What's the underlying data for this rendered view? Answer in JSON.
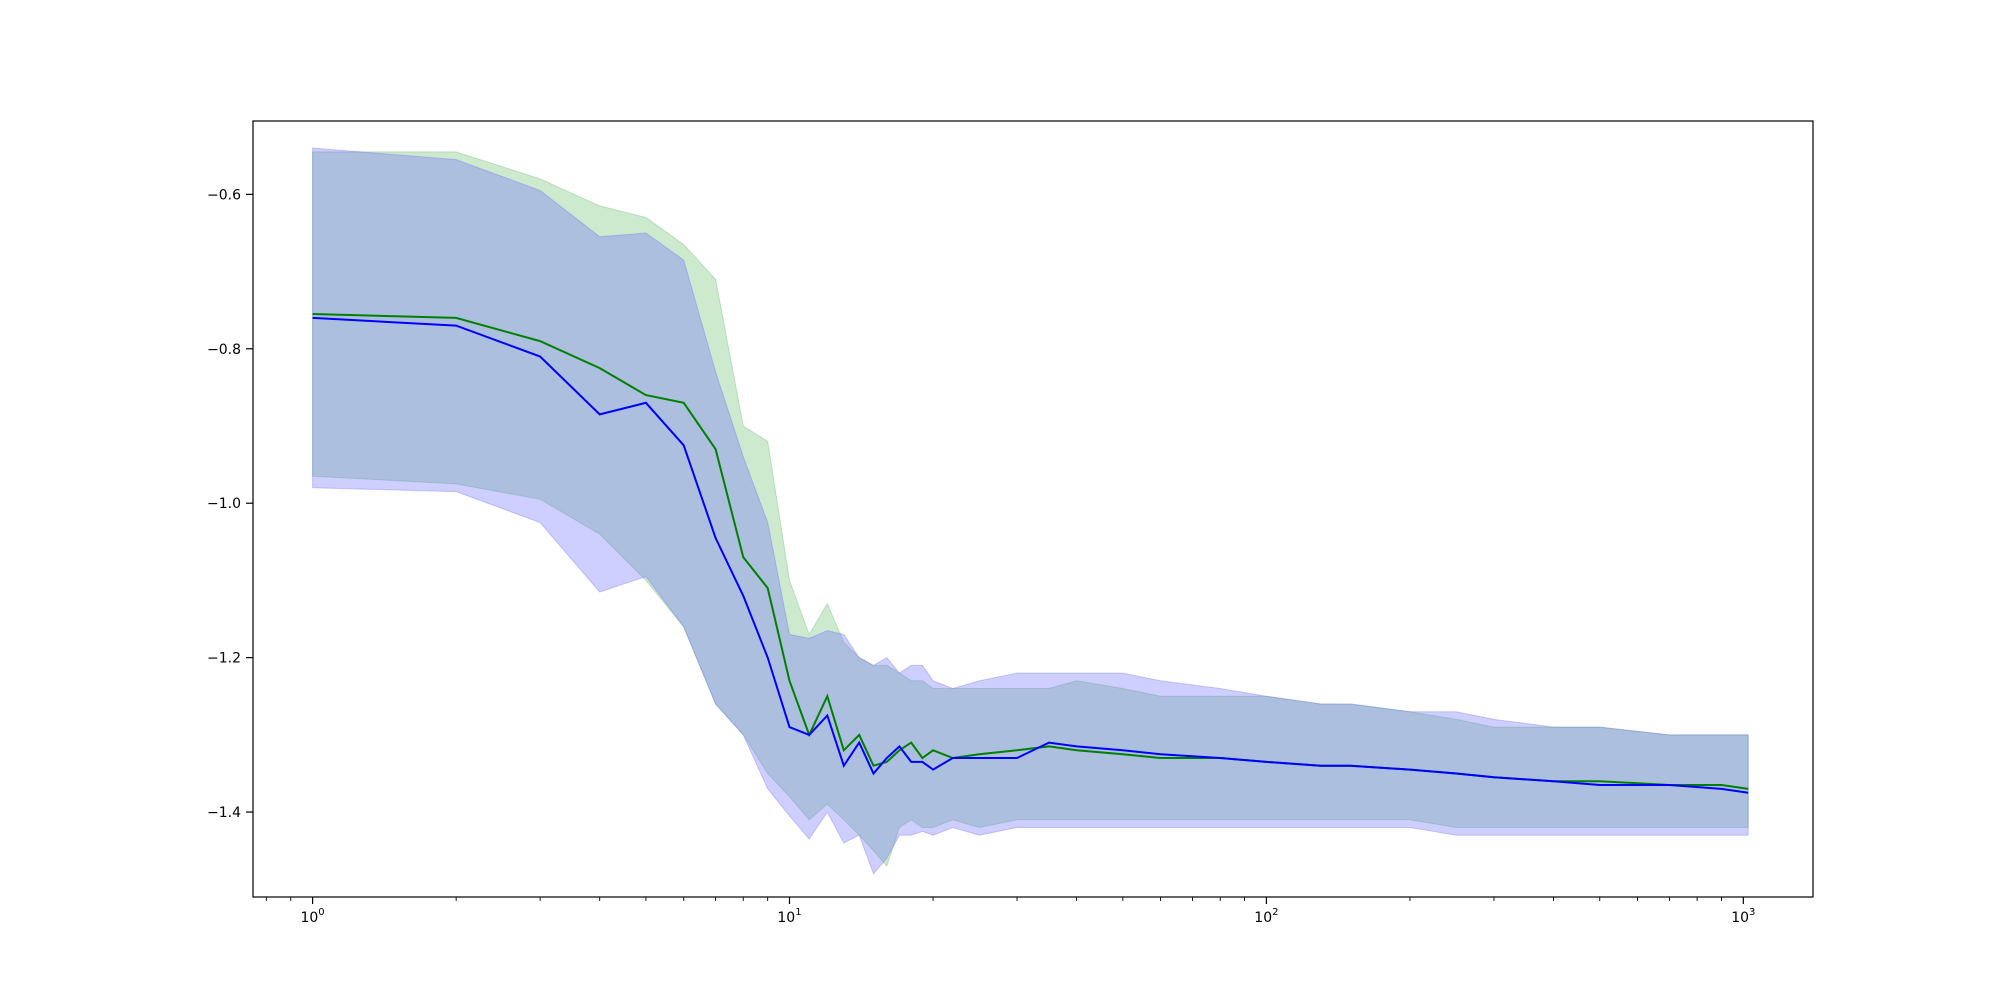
{
  "chart_data": {
    "type": "line",
    "title": "",
    "xlabel": "",
    "ylabel": "",
    "xscale": "log",
    "xlim": [
      0.75,
      1400
    ],
    "ylim": [
      -1.51,
      -0.505
    ],
    "grid": false,
    "legend": "none",
    "x_ticks": [
      {
        "base": "10",
        "exp": "0",
        "value": 1
      },
      {
        "base": "10",
        "exp": "1",
        "value": 10
      },
      {
        "base": "10",
        "exp": "2",
        "value": 100
      },
      {
        "base": "10",
        "exp": "3",
        "value": 1000
      }
    ],
    "y_ticks": [
      {
        "label": "−1.4",
        "value": -1.4
      },
      {
        "label": "−1.2",
        "value": -1.2
      },
      {
        "label": "−1.0",
        "value": -1.0
      },
      {
        "label": "−0.8",
        "value": -0.8
      },
      {
        "label": "−0.6",
        "value": -0.6
      }
    ],
    "series": [
      {
        "color": "#008000",
        "band_color": "#4caf50",
        "band_opacity": 0.28,
        "x": [
          1,
          2,
          3,
          4,
          5,
          6,
          7,
          8,
          9,
          10,
          11,
          12,
          13,
          14,
          15,
          16,
          17,
          18,
          19,
          20,
          22,
          25,
          30,
          35,
          40,
          50,
          60,
          80,
          100,
          130,
          150,
          200,
          250,
          300,
          400,
          500,
          700,
          900,
          1024
        ],
        "mean": [
          -0.755,
          -0.76,
          -0.79,
          -0.825,
          -0.86,
          -0.87,
          -0.93,
          -1.07,
          -1.11,
          -1.23,
          -1.3,
          -1.25,
          -1.32,
          -1.3,
          -1.34,
          -1.335,
          -1.32,
          -1.31,
          -1.33,
          -1.32,
          -1.33,
          -1.325,
          -1.32,
          -1.315,
          -1.32,
          -1.325,
          -1.33,
          -1.33,
          -1.335,
          -1.34,
          -1.34,
          -1.345,
          -1.35,
          -1.355,
          -1.36,
          -1.36,
          -1.365,
          -1.365,
          -1.37
        ],
        "lower": [
          -0.965,
          -0.975,
          -0.995,
          -1.04,
          -1.1,
          -1.16,
          -1.26,
          -1.3,
          -1.35,
          -1.38,
          -1.41,
          -1.39,
          -1.41,
          -1.43,
          -1.45,
          -1.47,
          -1.42,
          -1.41,
          -1.42,
          -1.42,
          -1.41,
          -1.42,
          -1.41,
          -1.41,
          -1.41,
          -1.41,
          -1.41,
          -1.41,
          -1.41,
          -1.41,
          -1.41,
          -1.41,
          -1.42,
          -1.42,
          -1.42,
          -1.42,
          -1.42,
          -1.42,
          -1.42
        ],
        "upper": [
          -0.545,
          -0.545,
          -0.58,
          -0.615,
          -0.63,
          -0.665,
          -0.71,
          -0.9,
          -0.92,
          -1.1,
          -1.17,
          -1.13,
          -1.18,
          -1.2,
          -1.21,
          -1.21,
          -1.22,
          -1.23,
          -1.23,
          -1.24,
          -1.24,
          -1.24,
          -1.24,
          -1.24,
          -1.23,
          -1.24,
          -1.25,
          -1.25,
          -1.25,
          -1.26,
          -1.26,
          -1.27,
          -1.28,
          -1.29,
          -1.29,
          -1.29,
          -1.3,
          -1.3,
          -1.3
        ]
      },
      {
        "color": "#0000ff",
        "band_color": "#6666ff",
        "band_opacity": 0.32,
        "x": [
          1,
          2,
          3,
          4,
          5,
          6,
          7,
          8,
          9,
          10,
          11,
          12,
          13,
          14,
          15,
          16,
          17,
          18,
          19,
          20,
          22,
          25,
          30,
          35,
          40,
          50,
          60,
          80,
          100,
          130,
          150,
          200,
          250,
          300,
          400,
          500,
          700,
          900,
          1024
        ],
        "mean": [
          -0.76,
          -0.77,
          -0.81,
          -0.885,
          -0.87,
          -0.925,
          -1.045,
          -1.12,
          -1.2,
          -1.29,
          -1.3,
          -1.275,
          -1.34,
          -1.31,
          -1.35,
          -1.33,
          -1.315,
          -1.335,
          -1.335,
          -1.345,
          -1.33,
          -1.33,
          -1.33,
          -1.31,
          -1.315,
          -1.32,
          -1.325,
          -1.33,
          -1.335,
          -1.34,
          -1.34,
          -1.345,
          -1.35,
          -1.355,
          -1.36,
          -1.365,
          -1.365,
          -1.37,
          -1.375
        ],
        "lower": [
          -0.98,
          -0.985,
          -1.025,
          -1.115,
          -1.095,
          -1.16,
          -1.26,
          -1.3,
          -1.37,
          -1.405,
          -1.435,
          -1.4,
          -1.44,
          -1.43,
          -1.48,
          -1.46,
          -1.43,
          -1.43,
          -1.425,
          -1.43,
          -1.42,
          -1.43,
          -1.42,
          -1.42,
          -1.42,
          -1.42,
          -1.42,
          -1.42,
          -1.42,
          -1.42,
          -1.42,
          -1.42,
          -1.43,
          -1.43,
          -1.43,
          -1.43,
          -1.43,
          -1.43,
          -1.43
        ],
        "upper": [
          -0.54,
          -0.555,
          -0.595,
          -0.655,
          -0.65,
          -0.685,
          -0.83,
          -0.94,
          -1.025,
          -1.17,
          -1.175,
          -1.165,
          -1.17,
          -1.2,
          -1.21,
          -1.2,
          -1.22,
          -1.21,
          -1.21,
          -1.23,
          -1.24,
          -1.23,
          -1.22,
          -1.22,
          -1.22,
          -1.22,
          -1.23,
          -1.24,
          -1.25,
          -1.26,
          -1.26,
          -1.27,
          -1.27,
          -1.28,
          -1.29,
          -1.29,
          -1.3,
          -1.3,
          -1.3
        ]
      }
    ]
  }
}
